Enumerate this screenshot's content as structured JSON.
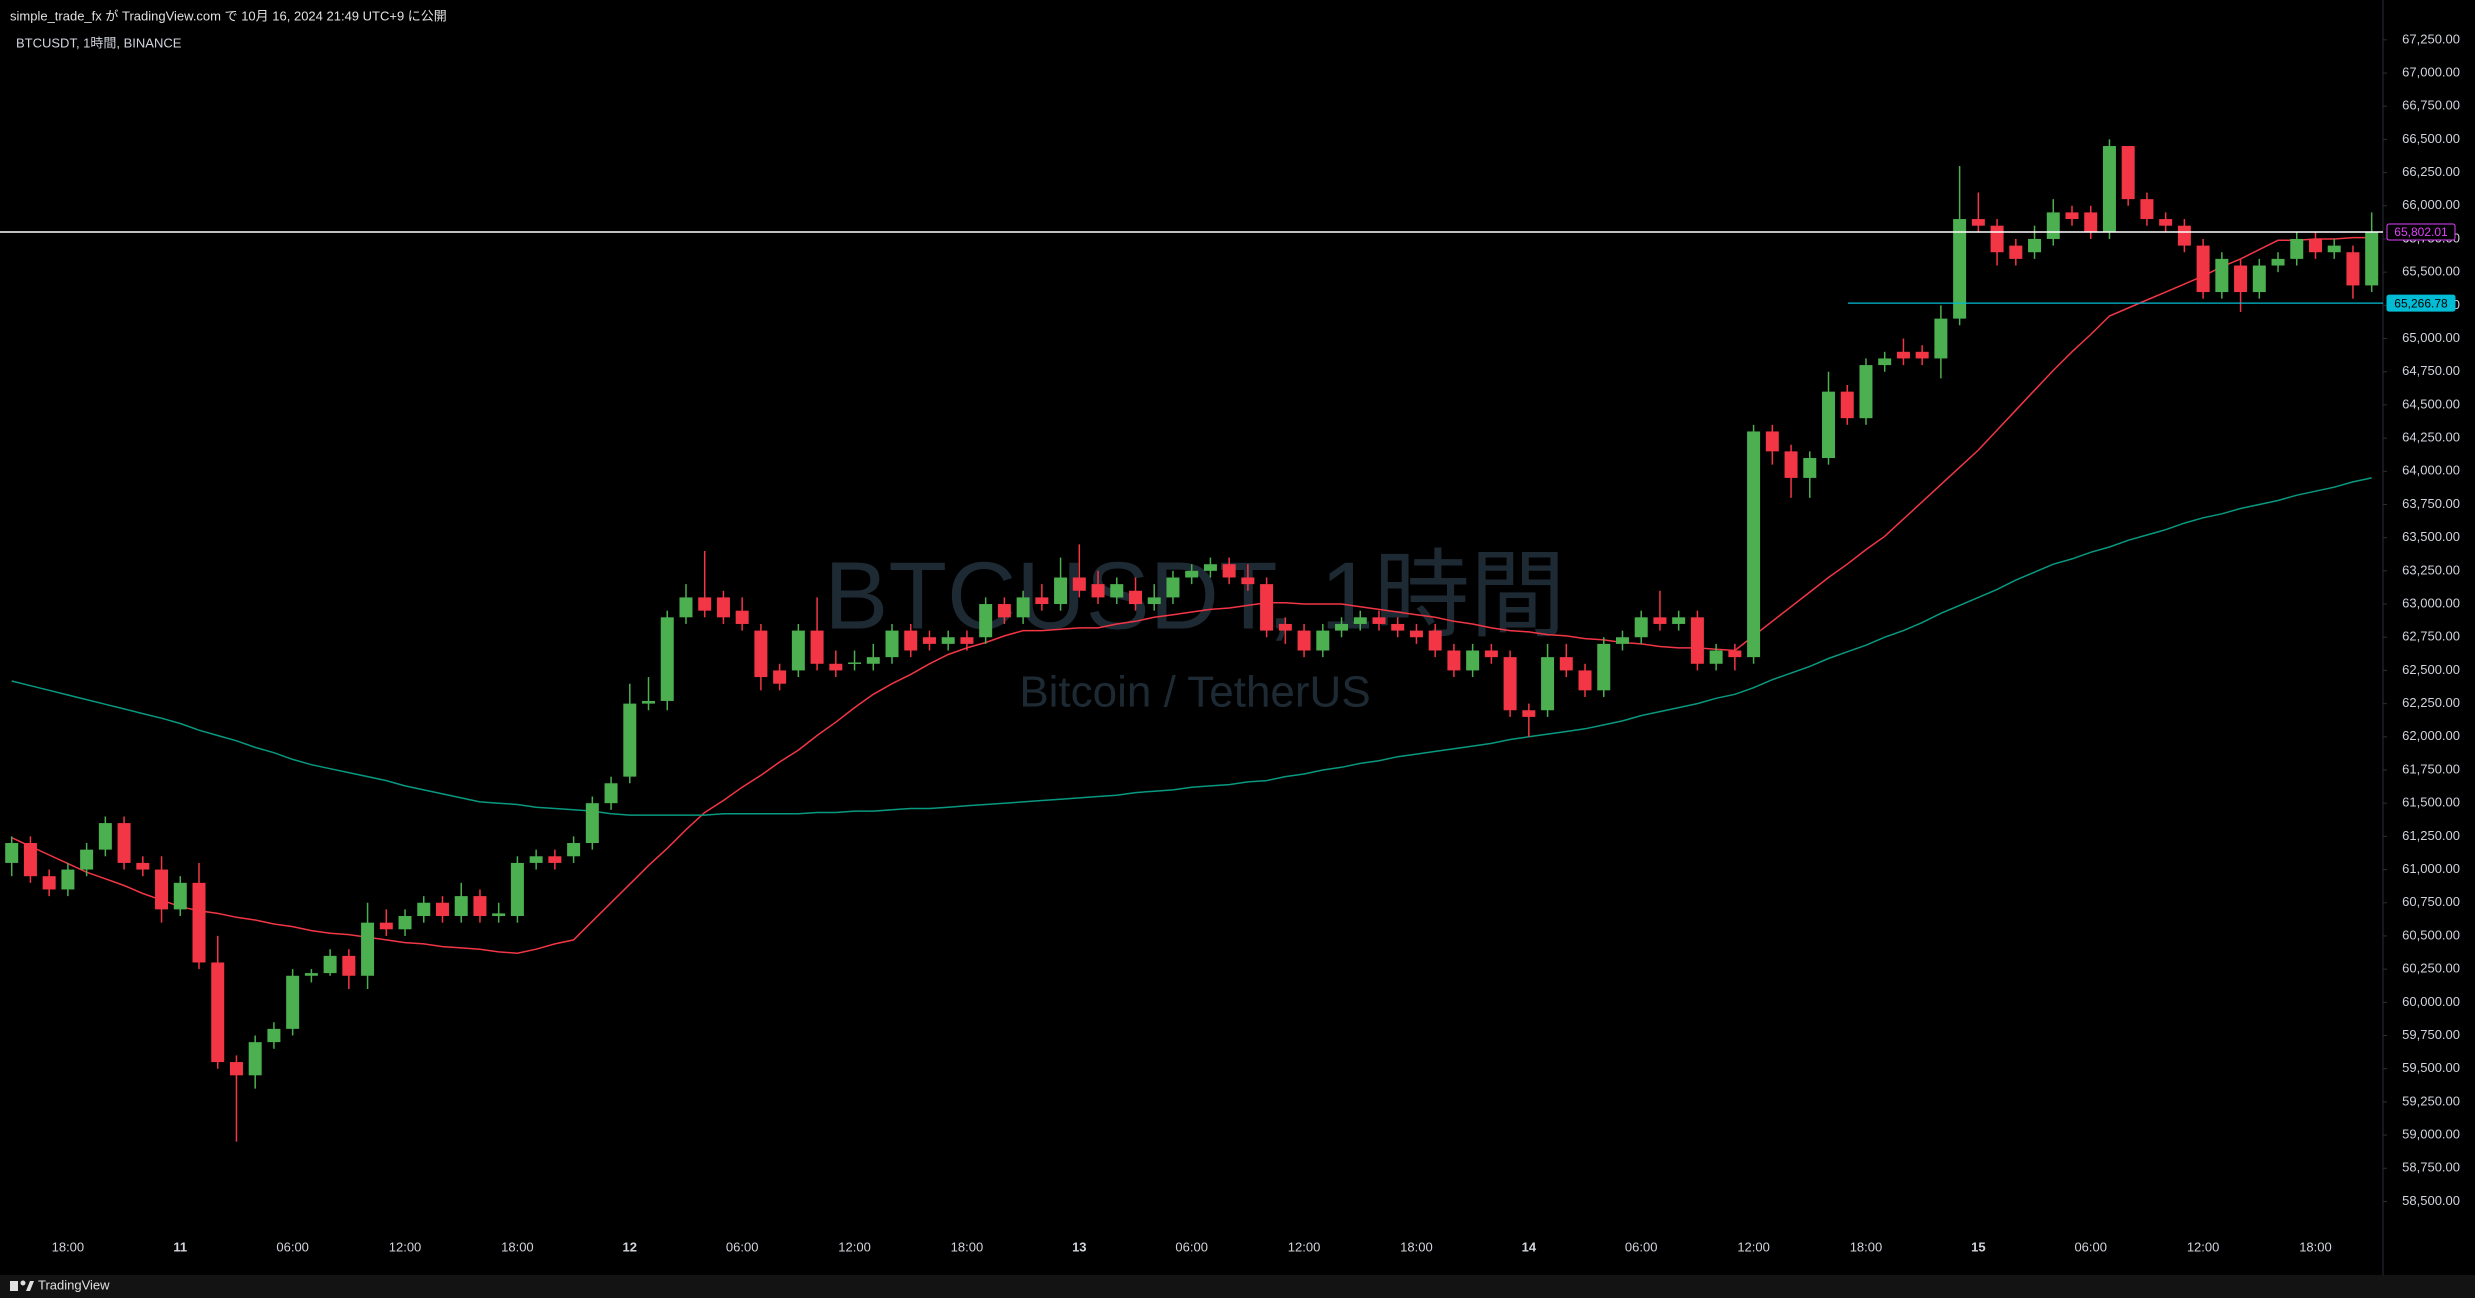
{
  "chart_data": {
    "type": "candlestick",
    "publisher_note": "simple_trade_fx が TradingView.com で 10月 16, 2024 21:49 UTC+9 に公開",
    "symbol_info": "BTCUSDT, 1時間, BINANCE",
    "watermark": "BTCUSDT, 1時間",
    "watermark_subtitle": "Bitcoin / TetherUS",
    "footer_brand": "TradingView",
    "up_color": "#4caf50",
    "down_color": "#f23645",
    "grid": false,
    "categories": [
      null,
      null,
      null,
      "18:00",
      null,
      null,
      null,
      null,
      null,
      "11",
      null,
      null,
      null,
      null,
      null,
      "06:00",
      null,
      null,
      null,
      null,
      null,
      "12:00",
      null,
      null,
      null,
      null,
      null,
      "18:00",
      null,
      null,
      null,
      null,
      null,
      "12",
      null,
      null,
      null,
      null,
      null,
      "06:00",
      null,
      null,
      null,
      null,
      null,
      "12:00",
      null,
      null,
      null,
      null,
      null,
      "18:00",
      null,
      null,
      null,
      null,
      null,
      "13",
      null,
      null,
      null,
      null,
      null,
      "06:00",
      null,
      null,
      null,
      null,
      null,
      "12:00",
      null,
      null,
      null,
      null,
      null,
      "18:00",
      null,
      null,
      null,
      null,
      null,
      "14",
      null,
      null,
      null,
      null,
      null,
      "06:00",
      null,
      null,
      null,
      null,
      null,
      "12:00",
      null,
      null,
      null,
      null,
      null,
      "18:00",
      null,
      null,
      null,
      null,
      null,
      "15",
      null,
      null,
      null,
      null,
      null,
      "06:00",
      null,
      null,
      null,
      null,
      null,
      "12:00",
      null,
      null,
      null,
      null,
      null,
      "18:00",
      null,
      null,
      null
    ],
    "open": [
      61050,
      61200,
      60950,
      60850,
      61000,
      61150,
      61350,
      61050,
      61000,
      60700,
      60900,
      60300,
      59550,
      59450,
      59700,
      59800,
      60200,
      60220,
      60350,
      60200,
      60600,
      60550,
      60650,
      60750,
      60650,
      60800,
      60650,
      60650,
      61050,
      61100,
      61100,
      61200,
      61500,
      61700,
      62250,
      62270,
      62900,
      63050,
      63050,
      62950,
      62800,
      62500,
      62500,
      62800,
      62550,
      62550,
      62550,
      62600,
      62800,
      62750,
      62700,
      62750,
      62750,
      63000,
      62900,
      63050,
      63000,
      63200,
      63150,
      63050,
      63100,
      63000,
      63050,
      63200,
      63250,
      63300,
      63200,
      63150,
      62850,
      62800,
      62650,
      62800,
      62850,
      62900,
      62850,
      62800,
      62800,
      62650,
      62500,
      62650,
      62600,
      62200,
      62200,
      62600,
      62500,
      62350,
      62700,
      62750,
      62900,
      62850,
      62900,
      62550,
      62650,
      62600,
      64300,
      64150,
      63950,
      64100,
      64600,
      64400,
      64800,
      64900,
      64900,
      64850,
      65150,
      65900,
      65850,
      65700,
      65650,
      65750,
      65950,
      65950,
      65800,
      66450,
      66050,
      65900,
      65850,
      65700,
      65350,
      65550,
      65350,
      65550,
      65600,
      65750,
      65650,
      65650,
      65400
    ],
    "high": [
      61250,
      61250,
      61000,
      61050,
      61200,
      61400,
      61400,
      61100,
      61100,
      60950,
      61050,
      60500,
      59600,
      59750,
      59850,
      60250,
      60250,
      60400,
      60400,
      60750,
      60700,
      60700,
      60800,
      60800,
      60900,
      60850,
      60750,
      61100,
      61150,
      61150,
      61250,
      61550,
      61700,
      62400,
      62450,
      62950,
      63150,
      63400,
      63100,
      63050,
      62850,
      62550,
      62850,
      63050,
      62650,
      62650,
      62700,
      62850,
      62850,
      62800,
      62800,
      62800,
      63050,
      63050,
      63100,
      63150,
      63350,
      63450,
      63250,
      63200,
      63200,
      63150,
      63250,
      63300,
      63350,
      63350,
      63300,
      63200,
      62900,
      62850,
      62850,
      62900,
      62950,
      62950,
      62900,
      62850,
      62850,
      62700,
      62700,
      62700,
      62650,
      62250,
      62700,
      62700,
      62550,
      62750,
      62800,
      62950,
      63100,
      62950,
      62950,
      62700,
      62700,
      64350,
      64350,
      64200,
      64150,
      64750,
      64650,
      64850,
      64900,
      65000,
      64950,
      65250,
      66300,
      66100,
      65900,
      65750,
      65850,
      66050,
      66000,
      66000,
      66500,
      66450,
      66100,
      65950,
      65900,
      65750,
      65650,
      65600,
      65600,
      65650,
      65800,
      65800,
      65750,
      65700,
      65950
    ],
    "low": [
      60950,
      60900,
      60800,
      60800,
      60950,
      61100,
      61000,
      60950,
      60600,
      60650,
      60250,
      59500,
      58950,
      59350,
      59650,
      59750,
      60150,
      60200,
      60100,
      60100,
      60500,
      60500,
      60600,
      60600,
      60600,
      60600,
      60600,
      60600,
      61000,
      61000,
      61050,
      61150,
      61450,
      61650,
      62200,
      62200,
      62850,
      62900,
      62850,
      62800,
      62350,
      62350,
      62450,
      62500,
      62450,
      62500,
      62500,
      62550,
      62600,
      62650,
      62650,
      62650,
      62700,
      62850,
      62850,
      62950,
      62950,
      63050,
      63000,
      63000,
      62950,
      62950,
      63000,
      63150,
      63200,
      63150,
      63100,
      62750,
      62700,
      62600,
      62600,
      62750,
      62800,
      62800,
      62750,
      62700,
      62600,
      62450,
      62450,
      62550,
      62150,
      62000,
      62150,
      62450,
      62300,
      62300,
      62650,
      62700,
      62800,
      62800,
      62500,
      62500,
      62500,
      62550,
      64050,
      63800,
      63800,
      64050,
      64350,
      64350,
      64750,
      64800,
      64800,
      64700,
      65100,
      65800,
      65550,
      65550,
      65600,
      65700,
      65850,
      65750,
      65750,
      66000,
      65850,
      65800,
      65650,
      65300,
      65300,
      65200,
      65300,
      65500,
      65550,
      65600,
      65600,
      65300,
      65350
    ],
    "close": [
      61200,
      60950,
      60850,
      61000,
      61150,
      61350,
      61050,
      61000,
      60700,
      60900,
      60300,
      59550,
      59450,
      59700,
      59800,
      60200,
      60220,
      60350,
      60200,
      60600,
      60550,
      60650,
      60750,
      60650,
      60800,
      60650,
      60670,
      61050,
      61100,
      61050,
      61200,
      61500,
      61650,
      62250,
      62270,
      62900,
      63050,
      62950,
      62900,
      62850,
      62450,
      62400,
      62800,
      62550,
      62500,
      62560,
      62600,
      62800,
      62650,
      62700,
      62750,
      62700,
      63000,
      62900,
      63050,
      63000,
      63200,
      63100,
      63050,
      63150,
      63000,
      63050,
      63200,
      63250,
      63300,
      63200,
      63150,
      62800,
      62800,
      62650,
      62800,
      62850,
      62900,
      62850,
      62800,
      62750,
      62650,
      62500,
      62650,
      62600,
      62200,
      62150,
      62600,
      62500,
      62350,
      62700,
      62750,
      62900,
      62850,
      62900,
      62550,
      62650,
      62600,
      64300,
      64150,
      63950,
      64100,
      64600,
      64400,
      64800,
      64850,
      64850,
      64850,
      65150,
      65900,
      65850,
      65650,
      65600,
      65750,
      65950,
      65900,
      65800,
      66450,
      66050,
      65900,
      65850,
      65700,
      65350,
      65600,
      65350,
      65550,
      65600,
      65750,
      65650,
      65700,
      65400,
      65800
    ],
    "series": [
      {
        "color": "#f23645",
        "values": [
          61240,
          61175,
          61110,
          61045,
          60980,
          60930,
          60880,
          60820,
          60770,
          60720,
          60690,
          60670,
          60640,
          60620,
          60590,
          60570,
          60540,
          60520,
          60510,
          60490,
          60470,
          60450,
          60440,
          60420,
          60410,
          60400,
          60380,
          60370,
          60400,
          60440,
          60470,
          60610,
          60750,
          60890,
          61030,
          61160,
          61300,
          61430,
          61520,
          61620,
          61710,
          61810,
          61900,
          62010,
          62110,
          62220,
          62320,
          62400,
          62470,
          62550,
          62620,
          62670,
          62710,
          62760,
          62800,
          62800,
          62810,
          62820,
          62820,
          62850,
          62870,
          62900,
          62920,
          62940,
          62960,
          62970,
          62990,
          63010,
          63010,
          63000,
          63000,
          63000,
          62980,
          62960,
          62940,
          62920,
          62900,
          62870,
          62850,
          62820,
          62800,
          62790,
          62770,
          62760,
          62740,
          62730,
          62710,
          62700,
          62680,
          62670,
          62670,
          62660,
          62650,
          62760,
          62870,
          62980,
          63090,
          63200,
          63300,
          63410,
          63510,
          63640,
          63770,
          63900,
          64030,
          64160,
          64310,
          64460,
          64610,
          64760,
          64900,
          65030,
          65170,
          65230,
          65290,
          65350,
          65410,
          65470,
          65540,
          65600,
          65670,
          65740,
          65740,
          65750,
          65750,
          65760,
          65760
        ]
      },
      {
        "color": "#089981",
        "values": [
          62420,
          62385,
          62350,
          62315,
          62280,
          62245,
          62210,
          62175,
          62140,
          62100,
          62050,
          62010,
          61970,
          61920,
          61880,
          61830,
          61790,
          61760,
          61730,
          61700,
          61670,
          61630,
          61600,
          61570,
          61540,
          61510,
          61500,
          61490,
          61470,
          61460,
          61450,
          61440,
          61420,
          61410,
          61410,
          61410,
          61410,
          61410,
          61420,
          61420,
          61420,
          61420,
          61420,
          61430,
          61430,
          61440,
          61440,
          61450,
          61460,
          61460,
          61470,
          61480,
          61490,
          61500,
          61510,
          61520,
          61530,
          61540,
          61550,
          61560,
          61580,
          61590,
          61600,
          61620,
          61630,
          61640,
          61660,
          61670,
          61700,
          61720,
          61750,
          61770,
          61800,
          61820,
          61850,
          61870,
          61890,
          61910,
          61930,
          61950,
          61980,
          62000,
          62020,
          62040,
          62060,
          62090,
          62120,
          62160,
          62190,
          62220,
          62250,
          62290,
          62320,
          62370,
          62430,
          62480,
          62530,
          62590,
          62640,
          62690,
          62750,
          62800,
          62860,
          62930,
          62990,
          63050,
          63110,
          63180,
          63240,
          63300,
          63340,
          63390,
          63430,
          63480,
          63520,
          63560,
          63610,
          63650,
          63680,
          63720,
          63750,
          63780,
          63820,
          63850,
          63880,
          63920,
          63950
        ]
      }
    ],
    "price_lines": [
      {
        "value": 65802.01,
        "label": "65,802.01",
        "color": "#ffffff",
        "label_color": "#e040fb"
      },
      {
        "value": 65266.78,
        "label": "65,266.78",
        "color": "#00bcd4",
        "label_color": "#00bcd4"
      }
    ],
    "ylim": [
      58300,
      67550
    ],
    "yticks": [
      {
        "value": 58500,
        "label": "58,500.00"
      },
      {
        "value": 58750,
        "label": "58,750.00"
      },
      {
        "value": 59000,
        "label": "59,000.00"
      },
      {
        "value": 59250,
        "label": "59,250.00"
      },
      {
        "value": 59500,
        "label": "59,500.00"
      },
      {
        "value": 59750,
        "label": "59,750.00"
      },
      {
        "value": 60000,
        "label": "60,000.00"
      },
      {
        "value": 60250,
        "label": "60,250.00"
      },
      {
        "value": 60500,
        "label": "60,500.00"
      },
      {
        "value": 60750,
        "label": "60,750.00"
      },
      {
        "value": 61000,
        "label": "61,000.00"
      },
      {
        "value": 61250,
        "label": "61,250.00"
      },
      {
        "value": 61500,
        "label": "61,500.00"
      },
      {
        "value": 61750,
        "label": "61,750.00"
      },
      {
        "value": 62000,
        "label": "62,000.00"
      },
      {
        "value": 62250,
        "label": "62,250.00"
      },
      {
        "value": 62500,
        "label": "62,500.00"
      },
      {
        "value": 62750,
        "label": "62,750.00"
      },
      {
        "value": 63000,
        "label": "63,000.00"
      },
      {
        "value": 63250,
        "label": "63,250.00"
      },
      {
        "value": 63500,
        "label": "63,500.00"
      },
      {
        "value": 63750,
        "label": "63,750.00"
      },
      {
        "value": 64000,
        "label": "64,000.00"
      },
      {
        "value": 64250,
        "label": "64,250.00"
      },
      {
        "value": 64500,
        "label": "64,500.00"
      },
      {
        "value": 64750,
        "label": "64,750.00"
      },
      {
        "value": 65000,
        "label": "65,000.00"
      },
      {
        "value": 65250,
        "label": "65,250.00"
      },
      {
        "value": 65500,
        "label": "65,500.00"
      },
      {
        "value": 65750,
        "label": "65,750.00"
      },
      {
        "value": 66000,
        "label": "66,000.00"
      },
      {
        "value": 66250,
        "label": "66,250.00"
      },
      {
        "value": 66500,
        "label": "66,500.00"
      },
      {
        "value": 66750,
        "label": "66,750.00"
      },
      {
        "value": 67000,
        "label": "67,000.00"
      },
      {
        "value": 67250,
        "label": "67,250.00"
      }
    ]
  }
}
